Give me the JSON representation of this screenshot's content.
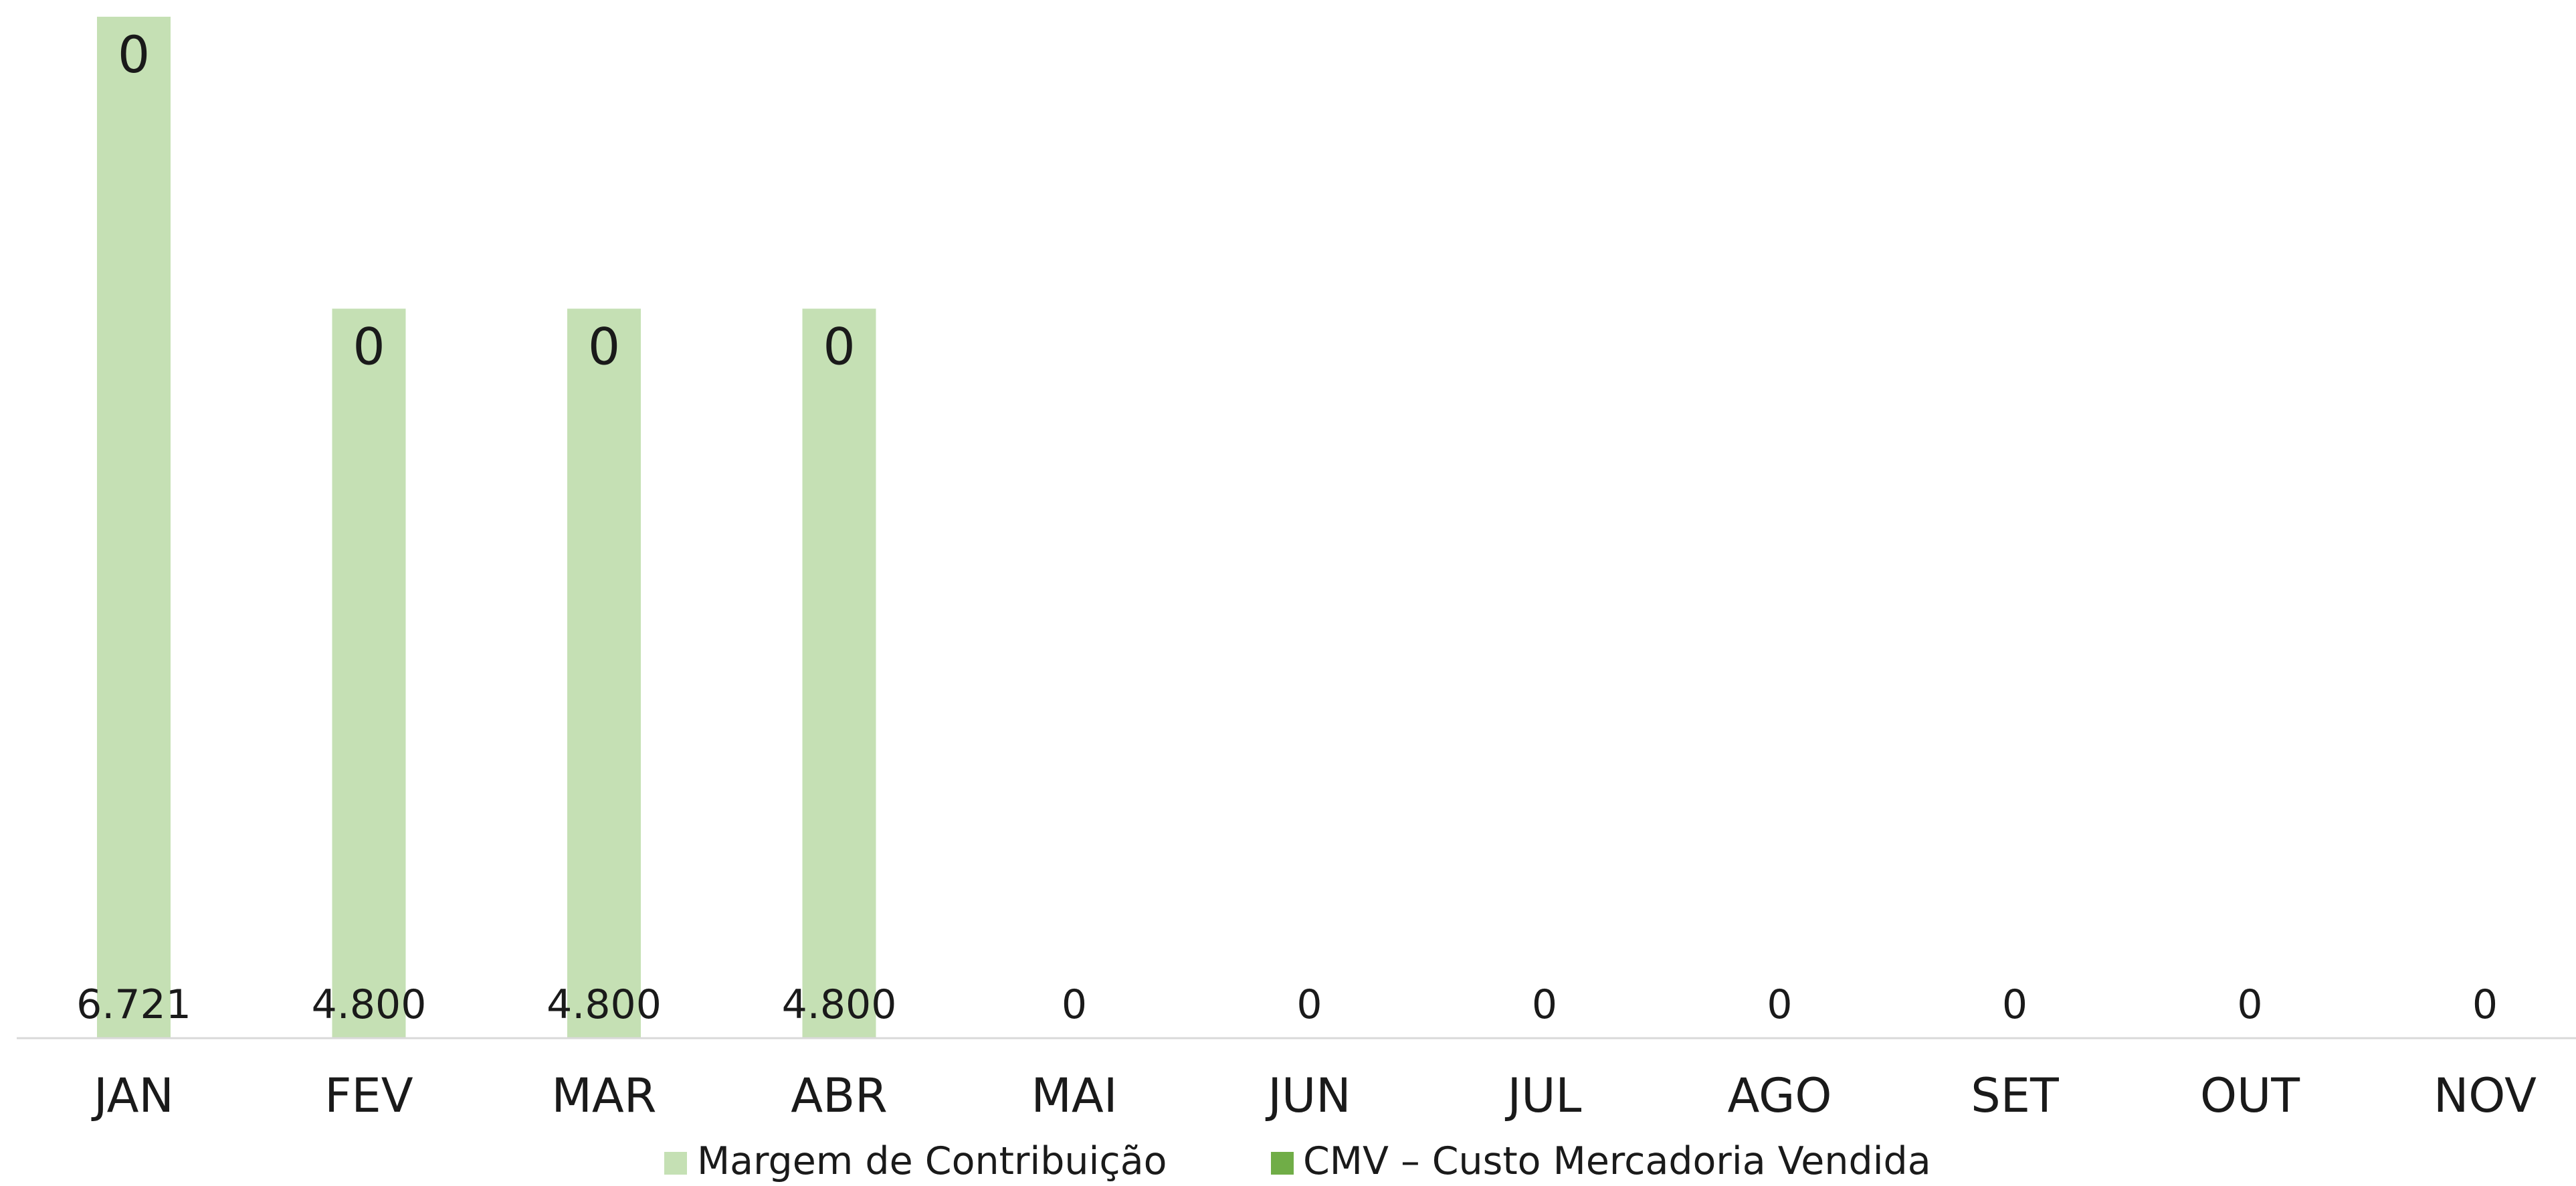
{
  "chart_data": {
    "type": "bar",
    "stacked": true,
    "categories": [
      "JAN",
      "FEV",
      "MAR",
      "ABR",
      "MAI",
      "JUN",
      "JUL",
      "AGO",
      "SET",
      "OUT",
      "NOV"
    ],
    "series": [
      {
        "name": "CMV – Custo Mercadoria Vendida",
        "color": "#70ad47",
        "values": [
          0,
          0,
          0,
          0,
          0,
          0,
          0,
          0,
          0,
          0,
          0
        ],
        "labels": [
          "0",
          "0",
          "0",
          "0",
          "0",
          "0",
          "0",
          "0",
          "0",
          "0",
          "0"
        ]
      },
      {
        "name": "Margem de Contribuição",
        "color": "#c5e0b4",
        "values": [
          6721,
          4800,
          4800,
          4800,
          null,
          null,
          null,
          null,
          null,
          null,
          null
        ],
        "labels": [
          "6.721",
          "4.800",
          "4.800",
          "4.800",
          "",
          "",
          "",
          "",
          "",
          "",
          ""
        ]
      }
    ],
    "ylim": [
      0,
      6721
    ],
    "grid": false,
    "legend": "bottom",
    "title": "",
    "xlabel": "",
    "ylabel": ""
  }
}
